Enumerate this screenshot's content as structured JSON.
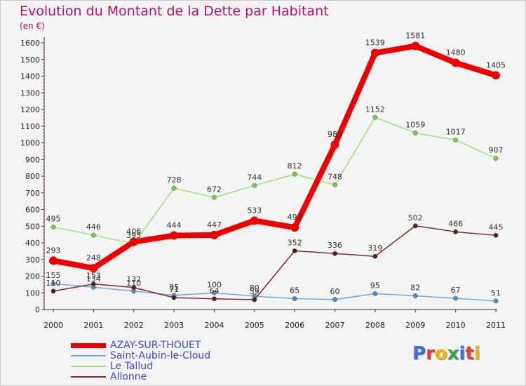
{
  "chart_data": {
    "type": "line",
    "title": "Evolution du Montant de la Dette par Habitant",
    "unit_label": "(en €)",
    "x": [
      "2000",
      "2001",
      "2002",
      "2003",
      "2004",
      "2005",
      "2006",
      "2007",
      "2008",
      "2009",
      "2010",
      "2011"
    ],
    "ylim": [
      0,
      1600
    ],
    "yticks": [
      0,
      100,
      200,
      300,
      400,
      500,
      600,
      700,
      800,
      900,
      1000,
      1100,
      1200,
      1300,
      1400,
      1500,
      1600
    ],
    "grid": false,
    "legend_position": "bottom-left",
    "series": [
      {
        "name": "Saint-Aubin-le-Cloud",
        "color": "#6fa8dc",
        "marker": "#4a8fd0",
        "values": [
          155,
          134,
          110,
          85,
          100,
          80,
          65,
          60,
          95,
          82,
          67,
          51
        ]
      },
      {
        "name": "Le Tallud",
        "color": "#9fe07a",
        "marker": "#77cc44",
        "values": [
          495,
          446,
          395,
          728,
          672,
          744,
          812,
          748,
          1152,
          1059,
          1017,
          907
        ]
      },
      {
        "name": "Allonne",
        "color": "#7a2b2b",
        "marker": "#5c1a1a",
        "values": [
          110,
          153,
          132,
          71,
          64,
          59,
          352,
          336,
          319,
          502,
          466,
          445
        ]
      },
      {
        "name": "AZAY-SUR-THOUET",
        "color": "#ee0000",
        "marker": "#ee0000",
        "values": [
          293,
          248,
          406,
          444,
          447,
          533,
          492,
          989,
          1539,
          1581,
          1480,
          1405
        ]
      }
    ]
  },
  "legend": {
    "items": [
      {
        "label": "AZAY-SUR-THOUET",
        "color": "#ee0000"
      },
      {
        "label": "Saint-Aubin-le-Cloud",
        "color": "#6fa8dc"
      },
      {
        "label": "Le Tallud",
        "color": "#9fe07a"
      },
      {
        "label": "Allonne",
        "color": "#7a2b2b"
      }
    ]
  },
  "logo": {
    "text": "Proxiti",
    "letters": [
      {
        "ch": "P",
        "color": "#3b6fd8"
      },
      {
        "ch": "r",
        "color": "#e63b2e"
      },
      {
        "ch": "o",
        "color": "#f0b400"
      },
      {
        "ch": "x",
        "color": "#2aa84a"
      },
      {
        "ch": "i",
        "color": "#3b6fd8"
      },
      {
        "ch": "t",
        "color": "#e63b2e"
      },
      {
        "ch": "i",
        "color": "#f0b400"
      }
    ]
  }
}
